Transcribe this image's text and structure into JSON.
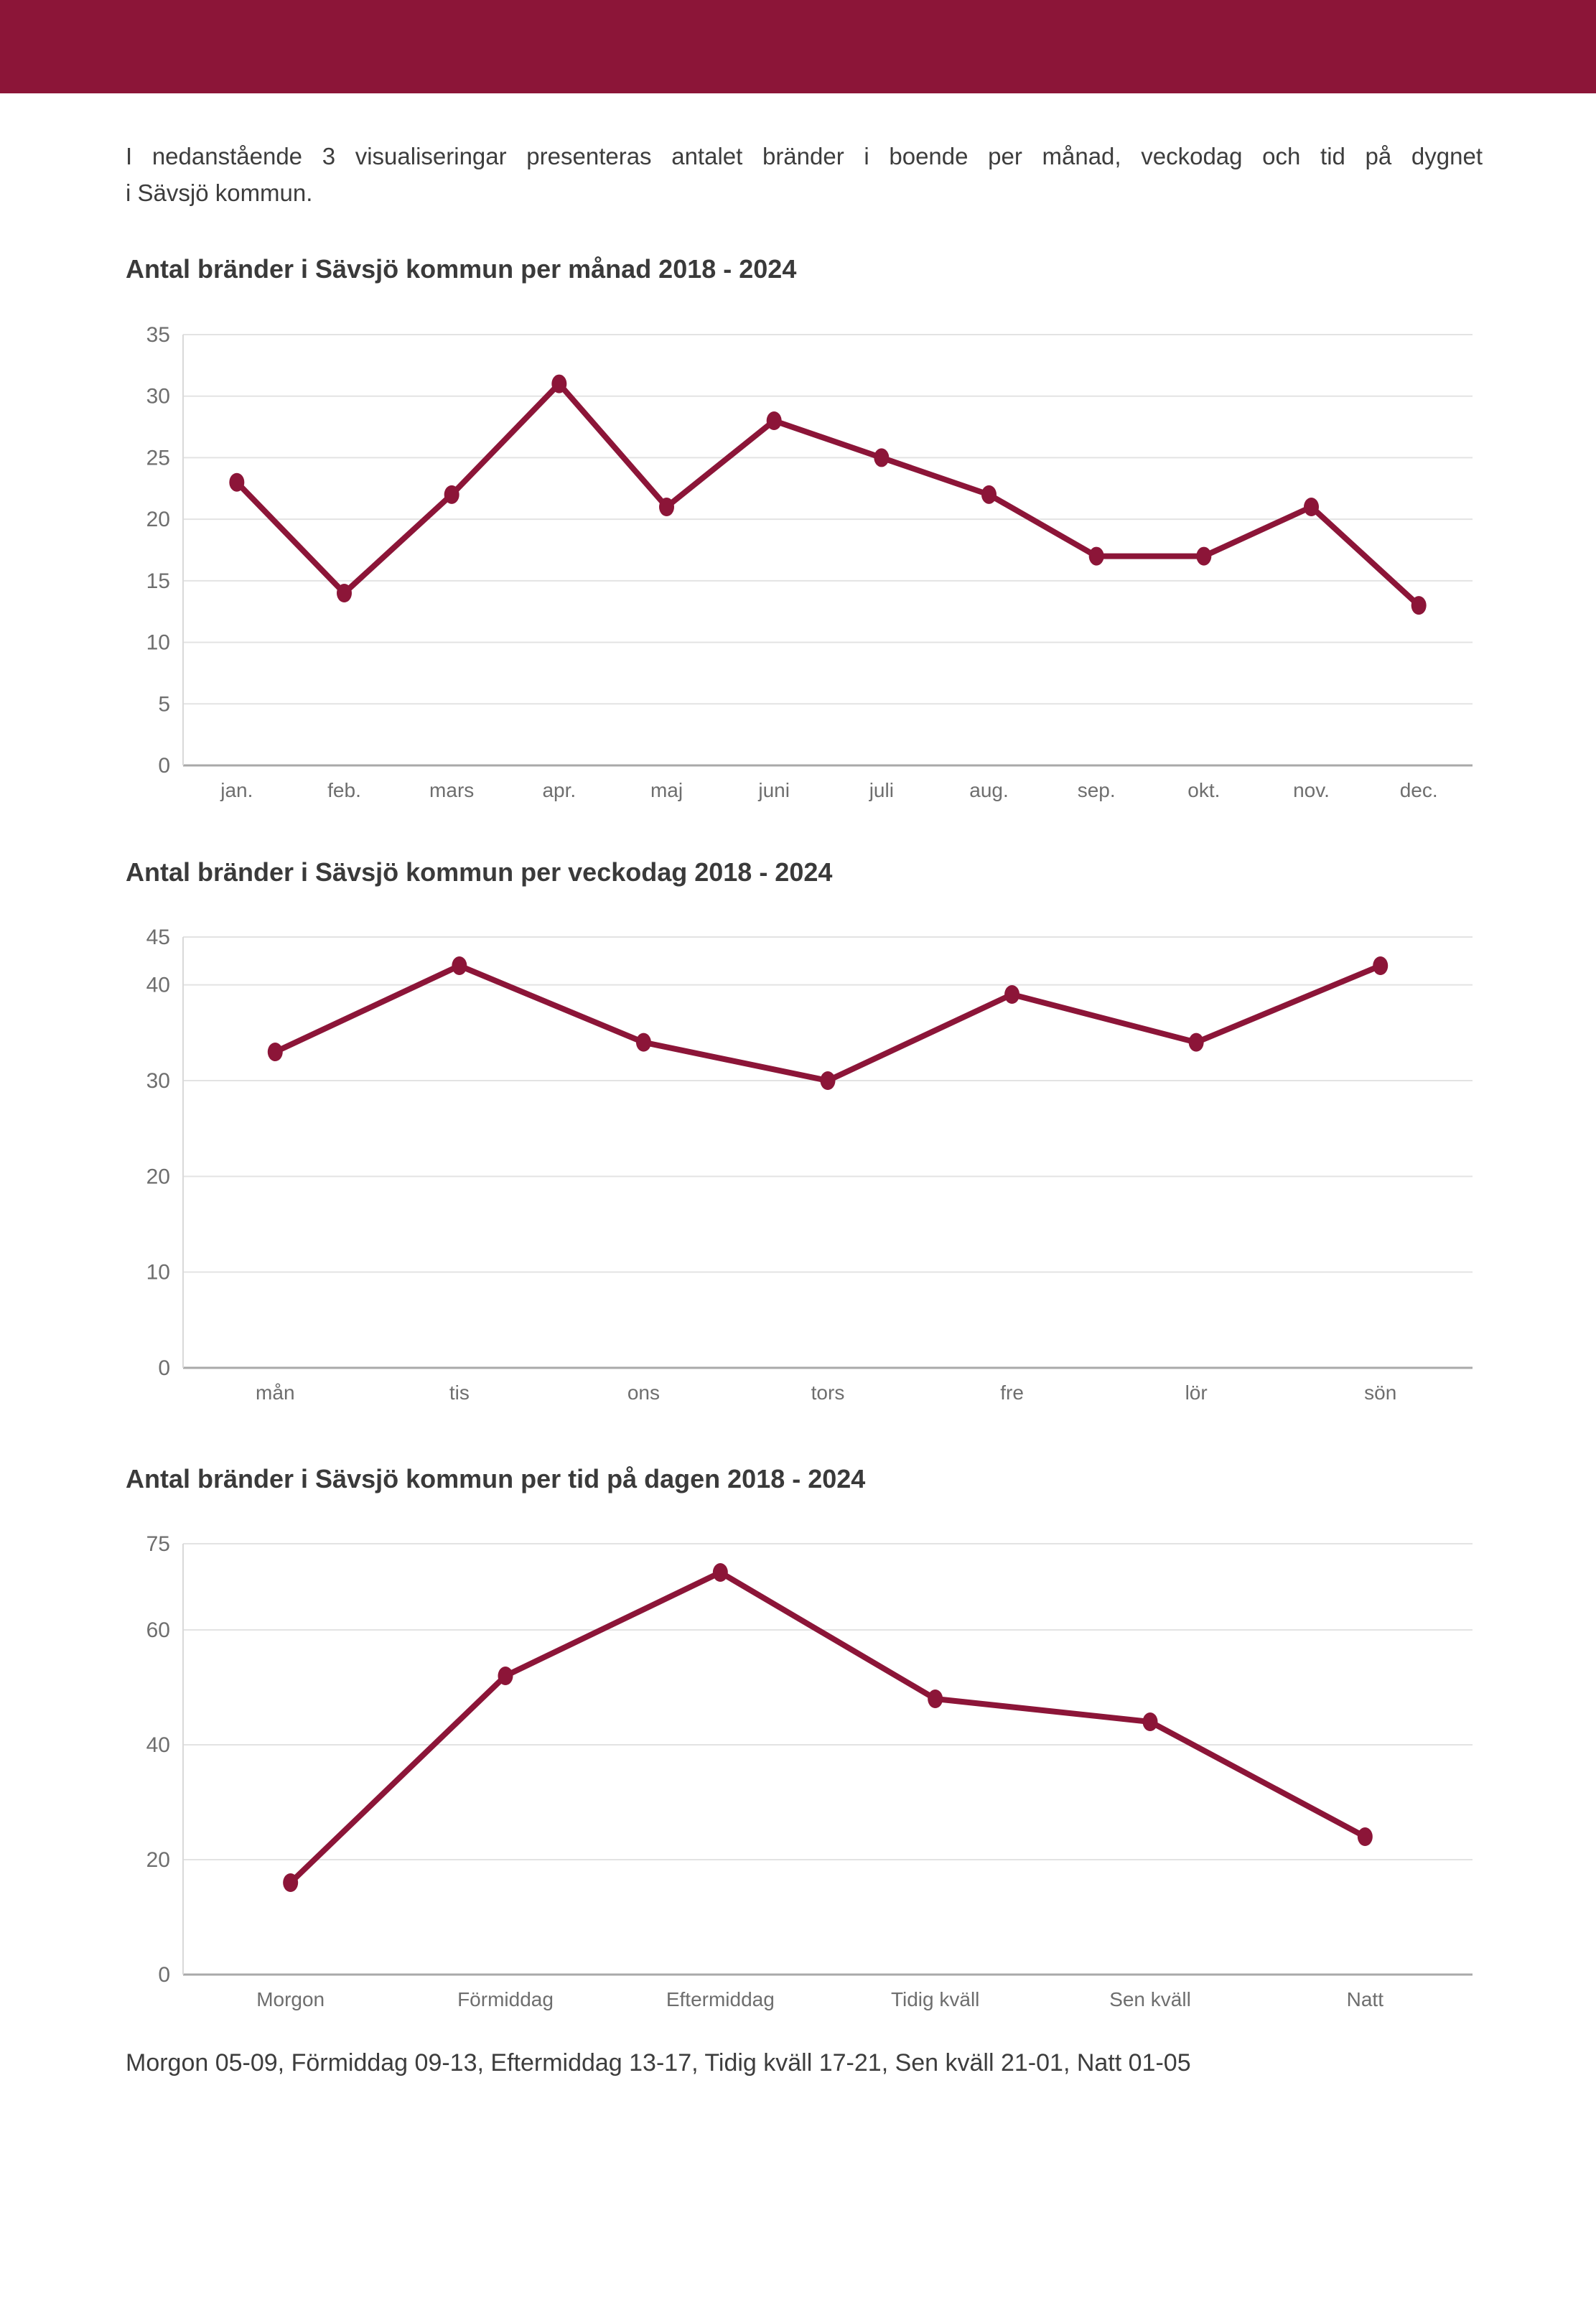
{
  "page": {
    "intro": {
      "line1": "I nedanstående 3 visualiseringar presenteras antalet bränder i boende per månad, veckodag och tid på dygnet",
      "line2": "i Sävsjö kommun."
    },
    "footer_note": "Morgon 05-09, Förmiddag 09-13, Eftermiddag 13-17, Tidig kväll 17-21, Sen kväll 21-01, Natt 01-05"
  },
  "colors": {
    "header_bar": "#8C1538",
    "series_line": "#8C1538",
    "grid_line": "#E3E3E3",
    "zero_line": "#A9A9A9",
    "axis_line": "#D9D9D9",
    "tick_label": "#6E6E6E",
    "title_text": "#3A3A3A",
    "body_text": "#3D3D3D"
  },
  "chart_data": [
    {
      "type": "line",
      "title": "Antal bränder i Sävsjö kommun per månad 2018 - 2024",
      "categories": [
        "jan.",
        "feb.",
        "mars",
        "apr.",
        "maj",
        "juni",
        "juli",
        "aug.",
        "sep.",
        "okt.",
        "nov.",
        "dec."
      ],
      "values": [
        23,
        14,
        22,
        31,
        21,
        28,
        25,
        22,
        17,
        17,
        21,
        13
      ],
      "xlabel": "",
      "ylabel": "",
      "ylim": [
        0,
        35
      ],
      "yticks": [
        0,
        5,
        10,
        15,
        20,
        25,
        30,
        35
      ],
      "grid": true,
      "legend": false
    },
    {
      "type": "line",
      "title": "Antal bränder i Sävsjö kommun per veckodag 2018 - 2024",
      "categories": [
        "mån",
        "tis",
        "ons",
        "tors",
        "fre",
        "lör",
        "sön"
      ],
      "values": [
        33,
        42,
        34,
        30,
        39,
        34,
        42
      ],
      "xlabel": "",
      "ylabel": "",
      "ylim": [
        0,
        45
      ],
      "yticks": [
        0,
        10,
        20,
        30,
        40,
        45
      ],
      "grid": true,
      "legend": false
    },
    {
      "type": "line",
      "title": "Antal bränder i Sävsjö kommun per tid på dagen 2018 - 2024",
      "categories": [
        "Morgon",
        "Förmiddag",
        "Eftermiddag",
        "Tidig kväll",
        "Sen kväll",
        "Natt"
      ],
      "values": [
        16,
        52,
        70,
        48,
        44,
        24
      ],
      "xlabel": "",
      "ylabel": "",
      "ylim": [
        0,
        75
      ],
      "yticks": [
        0,
        20,
        40,
        60,
        75
      ],
      "grid": true,
      "legend": false
    }
  ]
}
